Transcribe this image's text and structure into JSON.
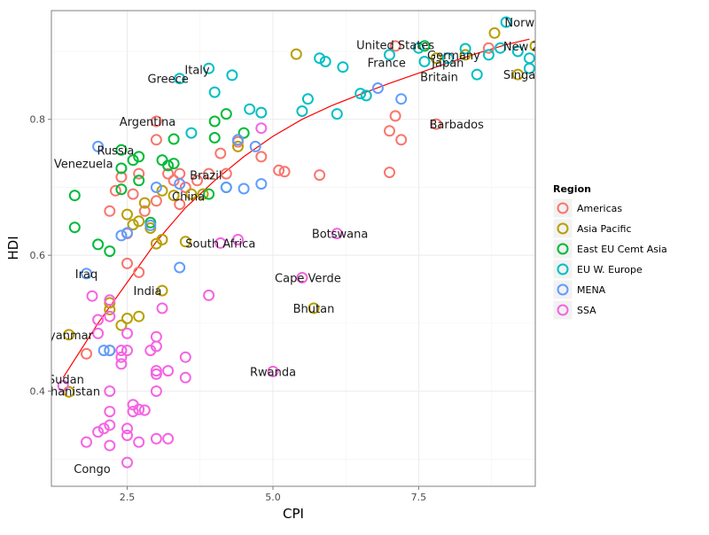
{
  "chart_data": {
    "type": "scatter",
    "title": "",
    "xlabel": "CPI",
    "ylabel": "HDI",
    "xlim": [
      1.2,
      9.5
    ],
    "ylim": [
      0.26,
      0.96
    ],
    "x_ticks": [
      2.5,
      5.0,
      7.5
    ],
    "x_tick_labels": [
      "2.5",
      "5.0",
      "7.5"
    ],
    "y_ticks": [
      0.4,
      0.6,
      0.8
    ],
    "y_tick_labels": [
      "0.4",
      "0.6",
      "0.8"
    ],
    "grid": true,
    "legend": {
      "title": "Region",
      "position": "right",
      "entries": [
        {
          "name": "Americas",
          "color": "#F8766D"
        },
        {
          "name": "Asia Pacific",
          "color": "#B79F00"
        },
        {
          "name": "East EU Cemt Asia",
          "color": "#00BA38"
        },
        {
          "name": "EU W. Europe",
          "color": "#00BFC4"
        },
        {
          "name": "MENA",
          "color": "#619CFF"
        },
        {
          "name": "SSA",
          "color": "#F564E3"
        }
      ]
    },
    "trend_line": {
      "color": "#ff0000",
      "points": [
        [
          1.4,
          0.42
        ],
        [
          2.0,
          0.5
        ],
        [
          2.5,
          0.56
        ],
        [
          3.0,
          0.62
        ],
        [
          3.5,
          0.67
        ],
        [
          4.0,
          0.71
        ],
        [
          4.5,
          0.745
        ],
        [
          5.0,
          0.775
        ],
        [
          5.5,
          0.8
        ],
        [
          6.0,
          0.82
        ],
        [
          6.5,
          0.837
        ],
        [
          7.0,
          0.853
        ],
        [
          7.5,
          0.868
        ],
        [
          8.0,
          0.883
        ],
        [
          8.5,
          0.897
        ],
        [
          9.0,
          0.91
        ],
        [
          9.4,
          0.918
        ]
      ]
    },
    "series": [
      {
        "name": "Americas",
        "points": [
          [
            1.8,
            0.455
          ],
          [
            2.2,
            0.665
          ],
          [
            2.3,
            0.695
          ],
          [
            2.4,
            0.715
          ],
          [
            2.5,
            0.588
          ],
          [
            2.5,
            0.632
          ],
          [
            2.6,
            0.69
          ],
          [
            2.7,
            0.575
          ],
          [
            2.7,
            0.72
          ],
          [
            2.8,
            0.665
          ],
          [
            3.0,
            0.797
          ],
          [
            3.0,
            0.77
          ],
          [
            3.0,
            0.68
          ],
          [
            3.2,
            0.72
          ],
          [
            3.3,
            0.71
          ],
          [
            3.4,
            0.72
          ],
          [
            3.4,
            0.675
          ],
          [
            3.5,
            0.7
          ],
          [
            3.7,
            0.71
          ],
          [
            3.9,
            0.72
          ],
          [
            4.1,
            0.75
          ],
          [
            4.2,
            0.72
          ],
          [
            4.4,
            0.767
          ],
          [
            4.8,
            0.745
          ],
          [
            5.1,
            0.725
          ],
          [
            5.2,
            0.723
          ],
          [
            5.8,
            0.718
          ],
          [
            7.0,
            0.783
          ],
          [
            7.1,
            0.805
          ],
          [
            7.0,
            0.722
          ],
          [
            7.2,
            0.77
          ],
          [
            7.1,
            0.908
          ],
          [
            7.8,
            0.793
          ],
          [
            8.7,
            0.905
          ]
        ]
      },
      {
        "name": "Asia Pacific",
        "points": [
          [
            1.5,
            0.483
          ],
          [
            1.5,
            0.399
          ],
          [
            2.2,
            0.52
          ],
          [
            2.2,
            0.53
          ],
          [
            2.2,
            0.46
          ],
          [
            2.4,
            0.497
          ],
          [
            2.5,
            0.507
          ],
          [
            2.5,
            0.66
          ],
          [
            2.6,
            0.645
          ],
          [
            2.7,
            0.65
          ],
          [
            2.7,
            0.51
          ],
          [
            2.8,
            0.677
          ],
          [
            2.9,
            0.64
          ],
          [
            3.0,
            0.617
          ],
          [
            3.1,
            0.548
          ],
          [
            3.1,
            0.623
          ],
          [
            3.1,
            0.695
          ],
          [
            3.3,
            0.688
          ],
          [
            3.5,
            0.62
          ],
          [
            3.6,
            0.69
          ],
          [
            3.8,
            0.69
          ],
          [
            4.4,
            0.76
          ],
          [
            5.4,
            0.896
          ],
          [
            5.7,
            0.522
          ],
          [
            7.8,
            0.89
          ],
          [
            8.3,
            0.895
          ],
          [
            8.8,
            0.927
          ],
          [
            9.2,
            0.866
          ],
          [
            9.5,
            0.908
          ]
        ]
      },
      {
        "name": "East EU Cemt Asia",
        "points": [
          [
            1.6,
            0.688
          ],
          [
            1.6,
            0.641
          ],
          [
            2.0,
            0.616
          ],
          [
            2.2,
            0.606
          ],
          [
            2.4,
            0.728
          ],
          [
            2.4,
            0.755
          ],
          [
            2.4,
            0.697
          ],
          [
            2.6,
            0.74
          ],
          [
            2.7,
            0.745
          ],
          [
            2.7,
            0.71
          ],
          [
            2.9,
            0.648
          ],
          [
            3.1,
            0.74
          ],
          [
            3.2,
            0.732
          ],
          [
            3.3,
            0.735
          ],
          [
            3.3,
            0.771
          ],
          [
            3.9,
            0.69
          ],
          [
            4.0,
            0.797
          ],
          [
            4.0,
            0.773
          ],
          [
            4.2,
            0.7
          ],
          [
            4.2,
            0.808
          ],
          [
            4.5,
            0.78
          ],
          [
            7.6,
            0.908
          ]
        ]
      },
      {
        "name": "EU W. Europe",
        "points": [
          [
            3.4,
            0.86
          ],
          [
            3.6,
            0.78
          ],
          [
            3.9,
            0.875
          ],
          [
            4.0,
            0.84
          ],
          [
            4.3,
            0.865
          ],
          [
            4.6,
            0.815
          ],
          [
            4.8,
            0.81
          ],
          [
            5.5,
            0.812
          ],
          [
            5.6,
            0.83
          ],
          [
            5.8,
            0.89
          ],
          [
            5.9,
            0.885
          ],
          [
            6.1,
            0.808
          ],
          [
            6.2,
            0.877
          ],
          [
            6.5,
            0.838
          ],
          [
            6.6,
            0.835
          ],
          [
            7.0,
            0.895
          ],
          [
            7.5,
            0.905
          ],
          [
            7.6,
            0.885
          ],
          [
            8.0,
            0.89
          ],
          [
            8.3,
            0.904
          ],
          [
            8.5,
            0.866
          ],
          [
            8.7,
            0.895
          ],
          [
            8.9,
            0.905
          ],
          [
            9.0,
            0.943
          ],
          [
            9.2,
            0.9
          ],
          [
            9.4,
            0.89
          ],
          [
            9.4,
            0.875
          ]
        ]
      },
      {
        "name": "MENA",
        "points": [
          [
            1.8,
            0.573
          ],
          [
            2.0,
            0.76
          ],
          [
            2.1,
            0.46
          ],
          [
            2.2,
            0.46
          ],
          [
            2.4,
            0.629
          ],
          [
            2.5,
            0.633
          ],
          [
            2.9,
            0.644
          ],
          [
            3.0,
            0.7
          ],
          [
            3.4,
            0.582
          ],
          [
            3.4,
            0.705
          ],
          [
            4.2,
            0.7
          ],
          [
            4.4,
            0.77
          ],
          [
            4.5,
            0.698
          ],
          [
            4.7,
            0.76
          ],
          [
            4.8,
            0.705
          ],
          [
            6.8,
            0.846
          ],
          [
            7.2,
            0.83
          ]
        ]
      },
      {
        "name": "SSA",
        "points": [
          [
            1.4,
            0.408
          ],
          [
            1.8,
            0.325
          ],
          [
            1.9,
            0.54
          ],
          [
            2.0,
            0.505
          ],
          [
            2.0,
            0.485
          ],
          [
            2.0,
            0.34
          ],
          [
            2.1,
            0.345
          ],
          [
            2.2,
            0.534
          ],
          [
            2.2,
            0.51
          ],
          [
            2.2,
            0.4
          ],
          [
            2.2,
            0.37
          ],
          [
            2.2,
            0.35
          ],
          [
            2.2,
            0.32
          ],
          [
            2.4,
            0.46
          ],
          [
            2.4,
            0.45
          ],
          [
            2.4,
            0.44
          ],
          [
            2.5,
            0.46
          ],
          [
            2.5,
            0.485
          ],
          [
            2.5,
            0.295
          ],
          [
            2.5,
            0.345
          ],
          [
            2.5,
            0.335
          ],
          [
            2.6,
            0.38
          ],
          [
            2.6,
            0.37
          ],
          [
            2.7,
            0.325
          ],
          [
            2.7,
            0.373
          ],
          [
            2.8,
            0.372
          ],
          [
            2.9,
            0.46
          ],
          [
            3.0,
            0.48
          ],
          [
            3.0,
            0.466
          ],
          [
            3.0,
            0.43
          ],
          [
            3.0,
            0.425
          ],
          [
            3.0,
            0.4
          ],
          [
            3.0,
            0.33
          ],
          [
            3.1,
            0.522
          ],
          [
            3.2,
            0.33
          ],
          [
            3.2,
            0.43
          ],
          [
            3.5,
            0.45
          ],
          [
            3.5,
            0.42
          ],
          [
            3.9,
            0.541
          ],
          [
            4.1,
            0.618
          ],
          [
            4.4,
            0.623
          ],
          [
            5.0,
            0.429
          ],
          [
            5.5,
            0.567
          ],
          [
            6.1,
            0.632
          ],
          [
            4.8,
            0.787
          ]
        ]
      }
    ],
    "annotations": [
      {
        "text": "Congo",
        "x": 1.9,
        "y": 0.286
      },
      {
        "text": "Sudan",
        "x": 1.45,
        "y": 0.418
      },
      {
        "text": "Afghanistan",
        "x": 1.45,
        "y": 0.4
      },
      {
        "text": "Myanmar",
        "x": 1.45,
        "y": 0.483
      },
      {
        "text": "Iraq",
        "x": 1.8,
        "y": 0.573
      },
      {
        "text": "Venezuela",
        "x": 1.75,
        "y": 0.735
      },
      {
        "text": "Russia",
        "x": 2.3,
        "y": 0.755
      },
      {
        "text": "Argentina",
        "x": 2.85,
        "y": 0.797
      },
      {
        "text": "Greece",
        "x": 3.2,
        "y": 0.86
      },
      {
        "text": "Italy",
        "x": 3.7,
        "y": 0.873
      },
      {
        "text": "India",
        "x": 2.85,
        "y": 0.548
      },
      {
        "text": "China",
        "x": 3.55,
        "y": 0.687
      },
      {
        "text": "Brazil",
        "x": 3.85,
        "y": 0.718
      },
      {
        "text": "South Africa",
        "x": 4.1,
        "y": 0.618
      },
      {
        "text": "Rwanda",
        "x": 5.0,
        "y": 0.429
      },
      {
        "text": "Cape Verde",
        "x": 5.6,
        "y": 0.567
      },
      {
        "text": "Bhutan",
        "x": 5.7,
        "y": 0.522
      },
      {
        "text": "Botswana",
        "x": 6.15,
        "y": 0.632
      },
      {
        "text": "United States",
        "x": 7.1,
        "y": 0.91
      },
      {
        "text": "France",
        "x": 6.95,
        "y": 0.884
      },
      {
        "text": "Germany",
        "x": 8.1,
        "y": 0.895
      },
      {
        "text": "Japan",
        "x": 8.0,
        "y": 0.884
      },
      {
        "text": "Britain",
        "x": 7.85,
        "y": 0.863
      },
      {
        "text": "Barbados",
        "x": 8.15,
        "y": 0.793
      },
      {
        "text": "Norway",
        "x": 9.35,
        "y": 0.943
      },
      {
        "text": "New Zealand",
        "x": 9.6,
        "y": 0.908
      },
      {
        "text": "Singapore",
        "x": 9.45,
        "y": 0.866
      }
    ]
  }
}
